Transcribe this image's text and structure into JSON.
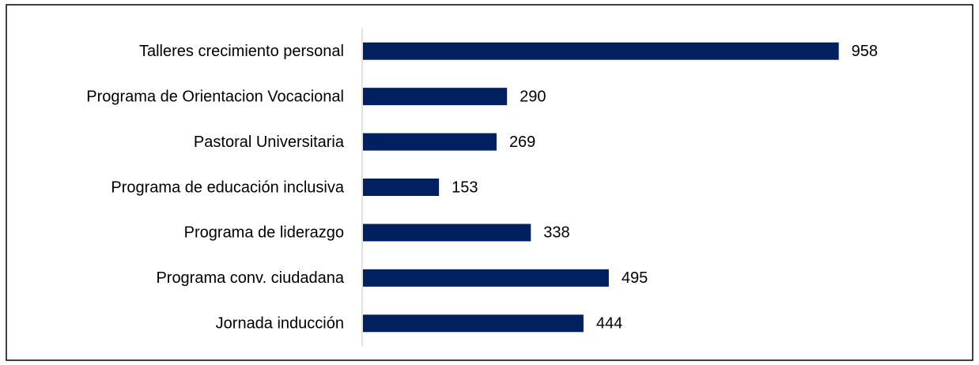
{
  "chart_data": {
    "type": "barh",
    "orientation": "horizontal",
    "categories": [
      "Talleres crecimiento personal",
      "Programa de Orientacion Vocacional",
      "Pastoral Universitaria",
      "Programa de educación inclusiva",
      "Programa de liderazgo",
      "Programa conv. ciudadana",
      "Jornada inducción"
    ],
    "values": [
      958,
      290,
      269,
      153,
      338,
      495,
      444
    ],
    "color": "#002060"
  }
}
